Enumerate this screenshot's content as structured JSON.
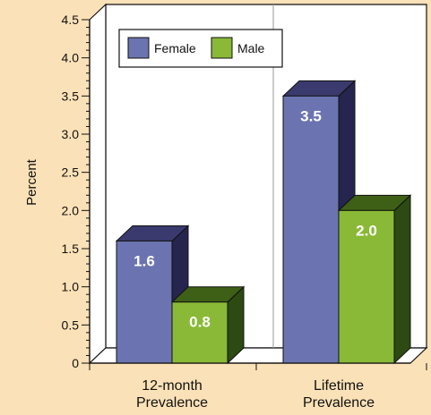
{
  "chart_data": {
    "type": "bar",
    "categories": [
      "12-month Prevalence",
      "Lifetime Prevalence"
    ],
    "category_lines": [
      [
        "12-month",
        "Prevalence"
      ],
      [
        "Lifetime",
        "Prevalence"
      ]
    ],
    "series": [
      {
        "name": "Female",
        "values": [
          1.6,
          3.5
        ],
        "color": "#6b74b0",
        "side": "#25254f",
        "top": "#3a3a6e"
      },
      {
        "name": "Male",
        "values": [
          0.8,
          2.0
        ],
        "color": "#89b936",
        "side": "#2c4a11",
        "top": "#3e6016"
      }
    ],
    "data_labels": [
      [
        "1.6",
        "3.5"
      ],
      [
        "0.8",
        "2.0"
      ]
    ],
    "ylabel": "Percent",
    "ylim": [
      0,
      4.5
    ],
    "yticks": [
      0,
      0.5,
      1.0,
      1.5,
      2.0,
      2.5,
      3.0,
      3.5,
      4.0,
      4.5
    ],
    "ytick_labels": [
      "0",
      "0.5",
      "1.0",
      "1.5",
      "2.0",
      "2.5",
      "3.0",
      "3.5",
      "4.0",
      "4.5"
    ],
    "legend": "top-left",
    "grid": false
  }
}
